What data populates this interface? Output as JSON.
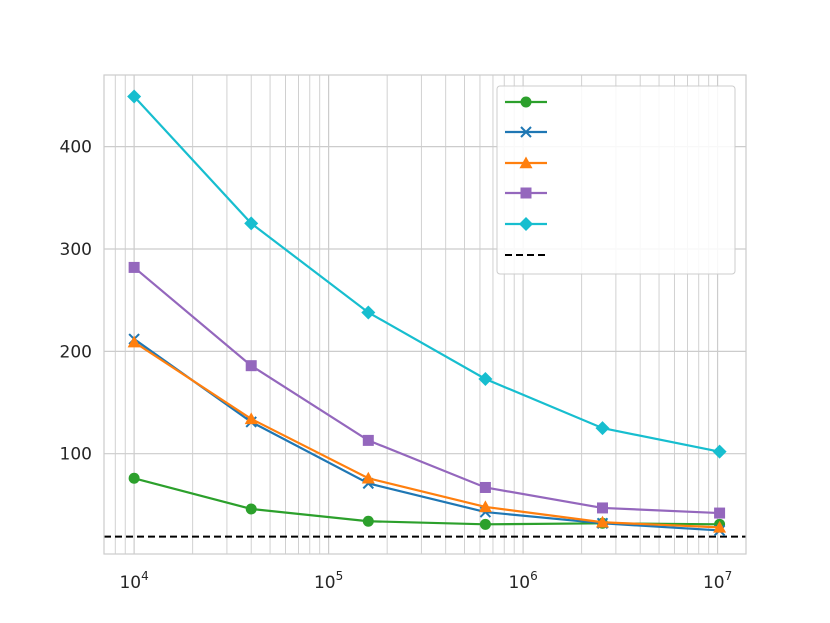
{
  "chart_data": {
    "type": "line",
    "xscale": "log",
    "x": [
      10000,
      40000,
      160000,
      640000,
      2560000,
      10240000
    ],
    "xlim": [
      7000,
      14000000
    ],
    "ylim": [
      2,
      470
    ],
    "grid": true,
    "legend_position": "upper-right",
    "x_tick_labels": [
      {
        "base": "10",
        "exp": "4",
        "value": 10000
      },
      {
        "base": "10",
        "exp": "5",
        "value": 100000
      },
      {
        "base": "10",
        "exp": "6",
        "value": 1000000
      },
      {
        "base": "10",
        "exp": "7",
        "value": 10000000
      }
    ],
    "y_tick_labels": [
      {
        "label": "100",
        "value": 100
      },
      {
        "label": "200",
        "value": 200
      },
      {
        "label": "300",
        "value": 300
      },
      {
        "label": "400",
        "value": 400
      }
    ],
    "series": [
      {
        "color": "#2ca02c",
        "marker": "circle",
        "values": [
          76,
          46,
          34,
          31,
          32,
          31
        ]
      },
      {
        "color": "#1f77b4",
        "marker": "x",
        "values": [
          212,
          131,
          71,
          43,
          32,
          25
        ]
      },
      {
        "color": "#ff7f0e",
        "marker": "triangle",
        "values": [
          209,
          134,
          76,
          48,
          33,
          28
        ]
      },
      {
        "color": "#9467bd",
        "marker": "square",
        "values": [
          282,
          186,
          113,
          67,
          47,
          42
        ]
      },
      {
        "color": "#17becf",
        "marker": "diamond",
        "values": [
          449,
          325,
          238,
          173,
          125,
          102
        ]
      }
    ],
    "reference_line": {
      "color": "#000000",
      "style": "dashed",
      "value": 19
    }
  }
}
